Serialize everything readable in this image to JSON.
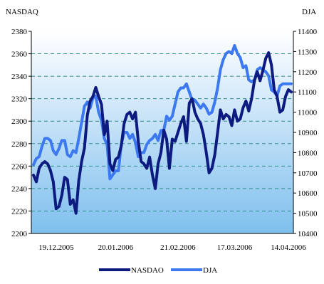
{
  "chart_data": {
    "type": "line",
    "left_axis": {
      "label": "NASDAQ",
      "ylim": [
        2200,
        2380
      ],
      "ticks": [
        2200,
        2220,
        2240,
        2260,
        2280,
        2300,
        2320,
        2340,
        2360,
        2380
      ],
      "tick_labels": [
        "2200",
        "2220",
        "2240",
        "2260",
        "2280",
        "2300",
        "2320",
        "2340",
        "2360",
        "2380"
      ]
    },
    "right_axis": {
      "label": "DJA",
      "ylim": [
        10400,
        11400
      ],
      "ticks": [
        10400,
        10500,
        10600,
        10700,
        10800,
        10900,
        11000,
        11100,
        11200,
        11300,
        11400
      ],
      "tick_labels": [
        "10400",
        "10500",
        "10600",
        "10700",
        "10800",
        "10900",
        "11000",
        "11100",
        "11200",
        "11300",
        "11400"
      ]
    },
    "x_axis": {
      "tick_labels": [
        "19.12.2005",
        "20.01.2006",
        "21.02.2006",
        "17.03.2006",
        "14.04.2006"
      ],
      "tick_index": [
        8,
        29,
        51,
        71,
        90
      ]
    },
    "grid": {
      "horizontal": true,
      "style": "dashed",
      "color": "#2e8b8b"
    },
    "plot_background": {
      "top": "#ffffff",
      "bottom": "#7fbfee"
    },
    "legend": {
      "position": "bottom",
      "entries": [
        {
          "name": "NASDAO",
          "color": "#0d1a80"
        },
        {
          "name": "DJA",
          "color": "#3c78f0"
        }
      ]
    },
    "series": [
      {
        "name": "NASDAO",
        "axis": "left",
        "color": "#0d1a80",
        "values": [
          2252,
          2246,
          2258,
          2262,
          2264,
          2262,
          2256,
          2246,
          2222,
          2224,
          2234,
          2250,
          2248,
          2226,
          2230,
          2218,
          2247,
          2264,
          2276,
          2305,
          2318,
          2322,
          2330,
          2322,
          2315,
          2288,
          2300,
          2262,
          2256,
          2266,
          2268,
          2278,
          2298,
          2306,
          2308,
          2302,
          2308,
          2282,
          2264,
          2262,
          2258,
          2268,
          2252,
          2240,
          2262,
          2272,
          2292,
          2284,
          2258,
          2284,
          2282,
          2290,
          2298,
          2304,
          2282,
          2316,
          2320,
          2308,
          2302,
          2298,
          2288,
          2272,
          2254,
          2258,
          2270,
          2290,
          2310,
          2302,
          2306,
          2304,
          2296,
          2310,
          2300,
          2302,
          2312,
          2318,
          2309,
          2320,
          2336,
          2344,
          2336,
          2345,
          2356,
          2361,
          2350,
          2328,
          2322,
          2308,
          2310,
          2322,
          2328,
          2326
        ]
      },
      {
        "name": "DJA",
        "axis": "right",
        "color": "#3c78f0",
        "values": [
          10740,
          10770,
          10780,
          10830,
          10870,
          10870,
          10860,
          10810,
          10790,
          10820,
          10860,
          10860,
          10790,
          10780,
          10810,
          10800,
          10870,
          10950,
          11030,
          11050,
          11020,
          11070,
          11080,
          11000,
          10960,
          10870,
          10840,
          10670,
          10690,
          10710,
          10710,
          10840,
          10900,
          10900,
          10870,
          10890,
          10850,
          10780,
          10800,
          10800,
          10840,
          10860,
          10870,
          10890,
          10860,
          10910,
          10910,
          10980,
          10960,
          10980,
          11040,
          11100,
          11120,
          11120,
          11140,
          11100,
          11060,
          11060,
          11040,
          11020,
          11040,
          11020,
          10990,
          11000,
          11050,
          11120,
          11210,
          11260,
          11290,
          11300,
          11290,
          11330,
          11290,
          11270,
          11220,
          11230,
          11160,
          11150,
          11160,
          11210,
          11220,
          11210,
          11200,
          11180,
          11110,
          11100,
          11080,
          11130,
          11140,
          11140,
          11140,
          11140
        ]
      }
    ]
  }
}
